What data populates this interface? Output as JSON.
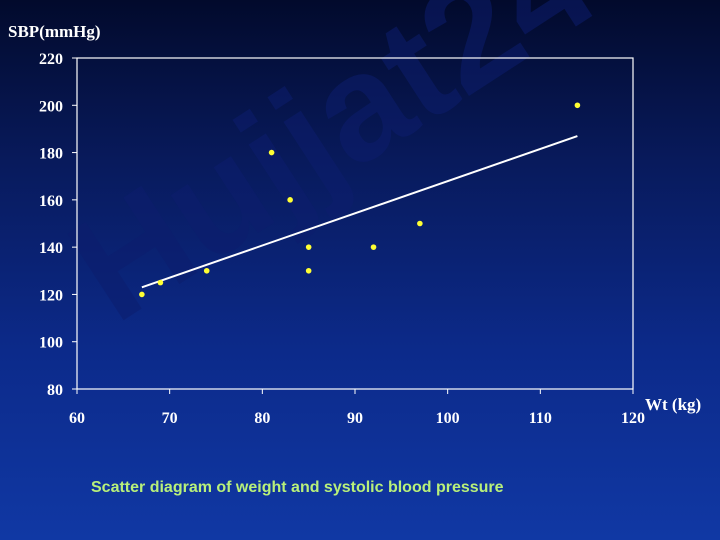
{
  "watermark": {
    "text": "Hujjat24"
  },
  "caption": "Scatter diagram of weight and systolic blood pressure",
  "colors": {
    "background_top": "#020a2c",
    "background_bottom": "#1038a4",
    "points": "#ffff33",
    "trend_line": "#ffffff",
    "axis": "#ffffff",
    "caption": "#b8f07a"
  },
  "chart_data": {
    "type": "scatter",
    "title": "",
    "xlabel": "Wt (kg)",
    "ylabel": "SBP(mmHg)",
    "xlim": [
      60,
      120
    ],
    "ylim": [
      80,
      220
    ],
    "x_ticks": [
      60,
      70,
      80,
      90,
      100,
      110,
      120
    ],
    "y_ticks": [
      80,
      100,
      120,
      140,
      160,
      180,
      200,
      220
    ],
    "grid": false,
    "legend": "none",
    "points": [
      {
        "x": 67,
        "y": 120
      },
      {
        "x": 69,
        "y": 125
      },
      {
        "x": 74,
        "y": 130
      },
      {
        "x": 81,
        "y": 180
      },
      {
        "x": 83,
        "y": 160
      },
      {
        "x": 85,
        "y": 140
      },
      {
        "x": 85,
        "y": 130
      },
      {
        "x": 92,
        "y": 140
      },
      {
        "x": 97,
        "y": 150
      },
      {
        "x": 114,
        "y": 200
      }
    ],
    "trend_line": {
      "x": [
        67,
        114
      ],
      "y": [
        123,
        187
      ]
    }
  }
}
